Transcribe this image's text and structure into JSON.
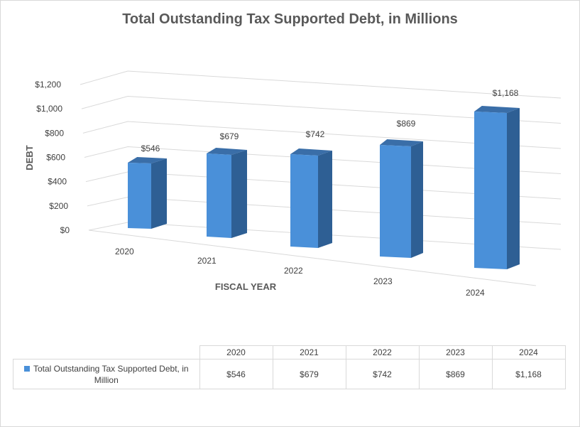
{
  "chart_data": {
    "type": "bar",
    "title": "Total Outstanding Tax Supported Debt, in Millions",
    "xlabel": "FISCAL YEAR",
    "ylabel": "DEBT",
    "categories": [
      "2020",
      "2021",
      "2022",
      "2023",
      "2024"
    ],
    "series": [
      {
        "name": "Total Outstanding Tax Supported Debt, in Million",
        "values": [
          546,
          679,
          742,
          869,
          1168
        ],
        "labels": [
          "$546",
          "$679",
          "$742",
          "$869",
          "$1,168"
        ],
        "color": "#4a90d9"
      }
    ],
    "ylim": [
      0,
      1200
    ],
    "yticks": [
      "$0",
      "$200",
      "$400",
      "$600",
      "$800",
      "$1,000",
      "$1,200"
    ],
    "grid": true,
    "style": "3d-perspective-column",
    "data_table": true
  }
}
